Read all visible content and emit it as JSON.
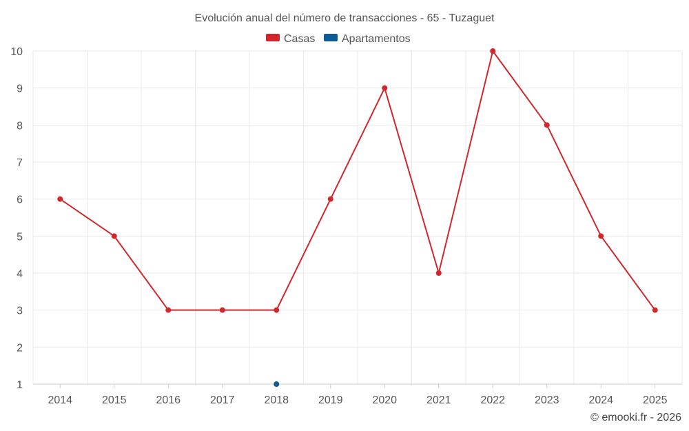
{
  "chart_data": {
    "type": "line",
    "title": "Evolución anual del número de transacciones - 65 - Tuzaguet",
    "categories": [
      "2014",
      "2015",
      "2016",
      "2017",
      "2018",
      "2019",
      "2020",
      "2021",
      "2022",
      "2023",
      "2024",
      "2025"
    ],
    "ylim": [
      1,
      10
    ],
    "yticks": [
      "1",
      "2",
      "3",
      "4",
      "5",
      "6",
      "7",
      "8",
      "9",
      "10"
    ],
    "grid": true,
    "legend_position": "top-center",
    "series": [
      {
        "name": "Casas",
        "color": "#d0262c",
        "values": [
          6,
          5,
          3,
          3,
          3,
          6,
          9,
          4,
          10,
          8,
          5,
          3
        ]
      },
      {
        "name": "Apartamentos",
        "color": "#0b5c95",
        "values": [
          null,
          null,
          null,
          null,
          1,
          null,
          null,
          null,
          null,
          null,
          null,
          null
        ]
      }
    ]
  },
  "credit": "© emooki.fr - 2026"
}
